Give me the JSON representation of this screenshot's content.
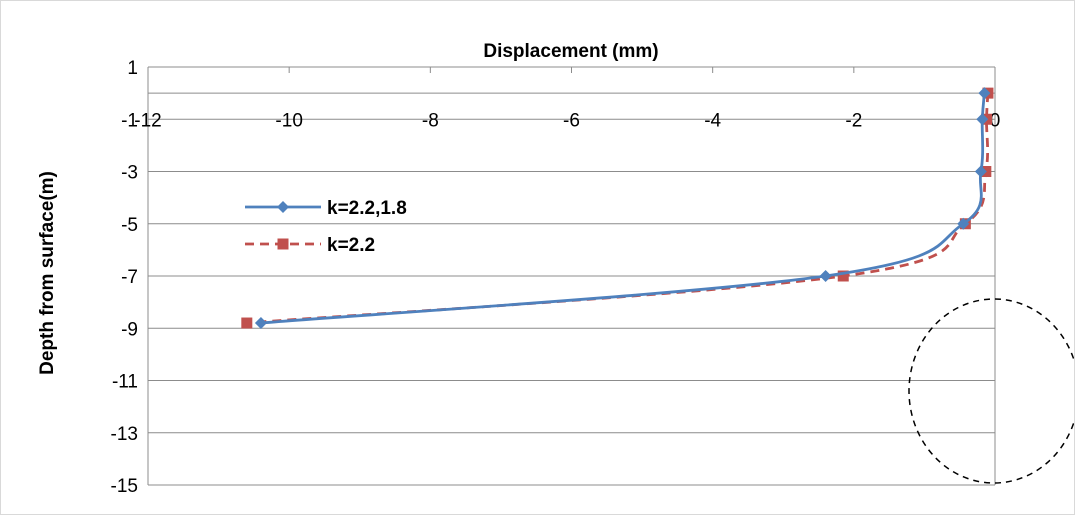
{
  "chart_data": {
    "type": "line",
    "title": "Displacement (mm)",
    "xlabel": "",
    "ylabel": "Depth from surface(m)",
    "xlim": [
      -12,
      0
    ],
    "ylim": [
      -15,
      1
    ],
    "x_ticks": [
      -12,
      -10,
      -8,
      -6,
      -4,
      -2,
      0
    ],
    "x_tick_labels": [
      "-12",
      "-10",
      "-8",
      "-6",
      "-4",
      "-2",
      "0"
    ],
    "y_ticks": [
      1,
      -1,
      -3,
      -5,
      -7,
      -9,
      -11,
      -13,
      -15
    ],
    "y_tick_labels": [
      "1",
      "-1",
      "-3",
      "-5",
      "-7",
      "-9",
      "-11",
      "-13",
      "-15"
    ],
    "x_axis_position": "top",
    "grid": "horizontal",
    "legend_position": "left",
    "series": [
      {
        "name": "k=2.2,1.8",
        "color": "#4f81bd",
        "marker": "diamond",
        "line_style": "solid",
        "points": [
          [
            -0.15,
            0
          ],
          [
            -0.18,
            -1
          ],
          [
            -0.2,
            -3
          ],
          [
            -0.45,
            -5
          ],
          [
            -2.4,
            -7
          ],
          [
            -10.4,
            -8.8
          ]
        ]
      },
      {
        "name": "k=2.2",
        "color": "#c0504d",
        "marker": "square",
        "line_style": "dashed",
        "points": [
          [
            -0.1,
            0
          ],
          [
            -0.12,
            -1
          ],
          [
            -0.13,
            -3
          ],
          [
            -0.42,
            -5
          ],
          [
            -2.15,
            -7
          ],
          [
            -10.6,
            -8.8
          ]
        ]
      }
    ]
  }
}
